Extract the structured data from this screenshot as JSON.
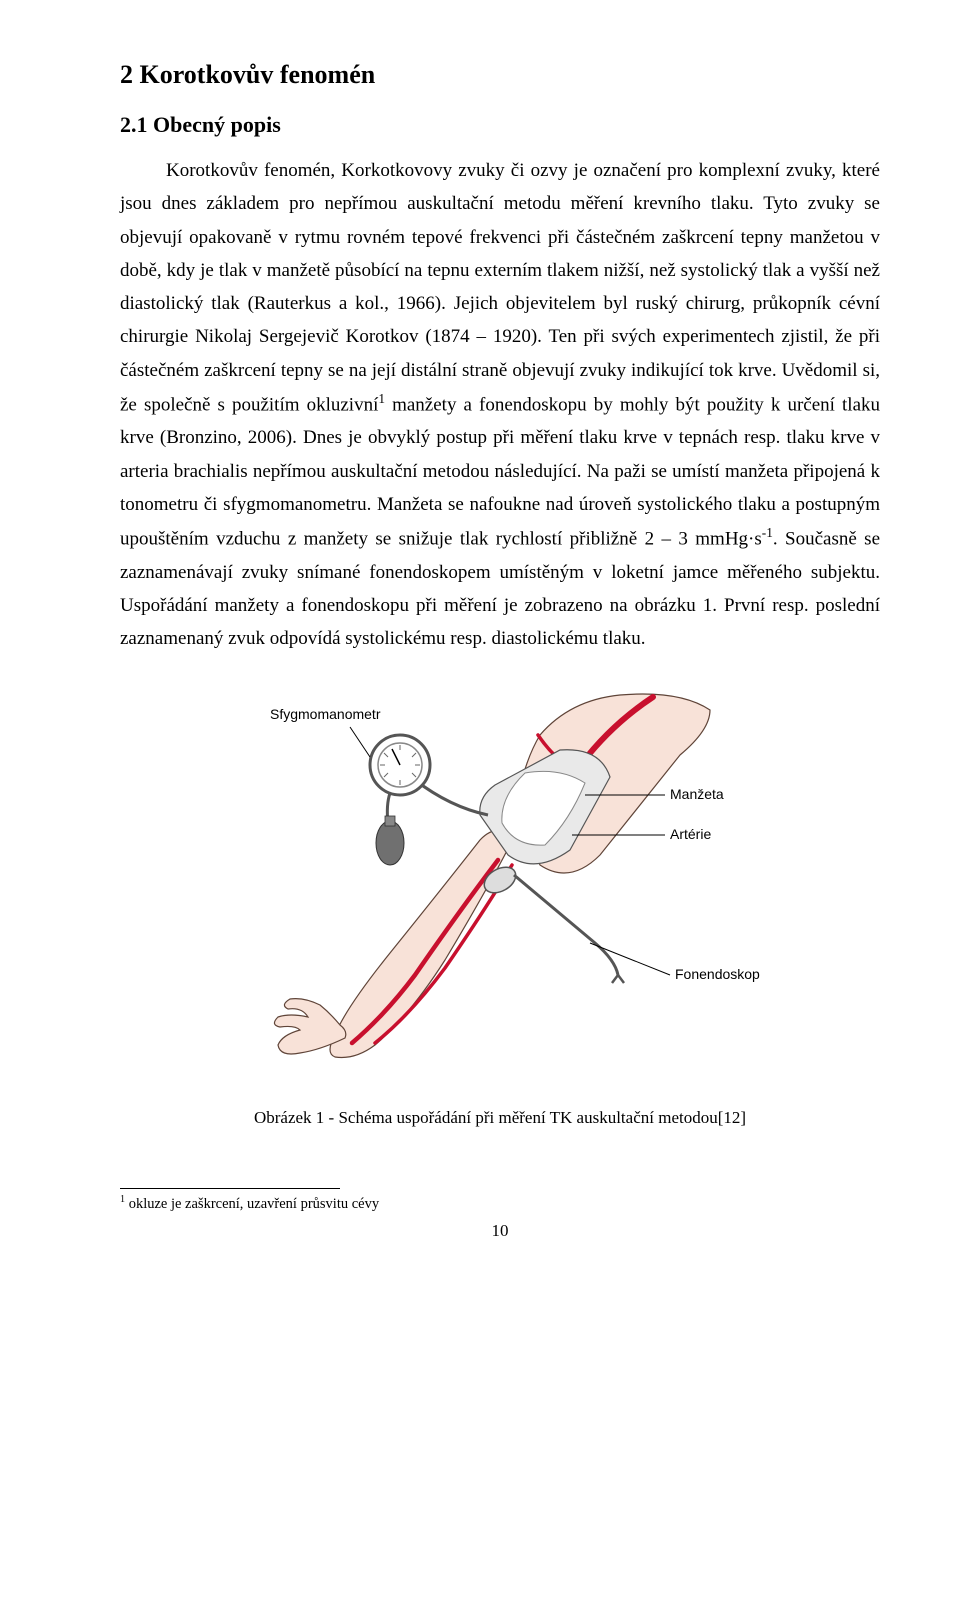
{
  "heading_main": "2   Korotkovův fenomén",
  "heading_sub": "2.1   Obecný popis",
  "para_html": "Korotkovův fenomén, Korkotkovovy zvuky či ozvy je označení pro komplexní zvuky, které jsou dnes základem pro nepřímou auskultační metodu měření krevního tlaku. Tyto zvuky se objevují opakovaně v rytmu rovném tepové frekvenci při částečném zaškrcení tepny manžetou v době, kdy je tlak v manžetě působící na tepnu externím tlakem nižší, než systolický tlak a vyšší než diastolický tlak (Rauterkus a kol., 1966). Jejich objevitelem byl ruský chirurg, průkopník cévní chirurgie Nikolaj Sergejevič Korotkov (1874 – 1920). Ten při svých experimentech zjistil, že při částečném zaškrcení tepny se na její distální straně objevují zvuky indikující tok krve. Uvědomil si, že společně s použitím okluzivní<sup>1</sup> manžety a fonendoskopu by mohly být použity k určení tlaku krve (Bronzino, 2006). Dnes je obvyklý postup při měření tlaku krve v tepnách resp. tlaku krve v arteria brachialis nepřímou auskultační metodou následující. Na paži se umístí manžeta připojená k tonometru či sfygmomanometru. Manžeta se nafoukne nad úroveň systolického tlaku a postupným upouštěním vzduchu z manžety se snižuje tlak rychlostí přibližně 2 – 3 mmHg·s<sup>-1</sup>. Současně se zaznamenávají zvuky snímané fonendoskopem umístěným v loketní jamce měřeného subjektu. Uspořádání manžety a fonendoskopu při měření je zobrazeno na obrázku 1. První resp. poslední zaznamenaný zvuk odpovídá systolickému resp. diastolickému tlaku.",
  "caption": "Obrázek 1 - Schéma uspořádání při měření TK auskultační metodou[12]",
  "footnote_html": "<sup>1</sup> okluze je zaškrcení, uzavření průsvitu cévy",
  "page_number": "10",
  "diagram": {
    "labels": {
      "sphygmo": "Sfygmomanometr",
      "cuff": "Manžeta",
      "artery": "Artérie",
      "stetho": "Fonendoskop"
    },
    "colors": {
      "skin_fill": "#f8e2d8",
      "skin_stroke": "#5f4438",
      "artery": "#c8102e",
      "cuff_fill": "#e9e9e9",
      "cuff_stroke": "#555555",
      "gauge_stroke": "#555555",
      "bulb_fill": "#707070",
      "leader": "#000000"
    }
  }
}
